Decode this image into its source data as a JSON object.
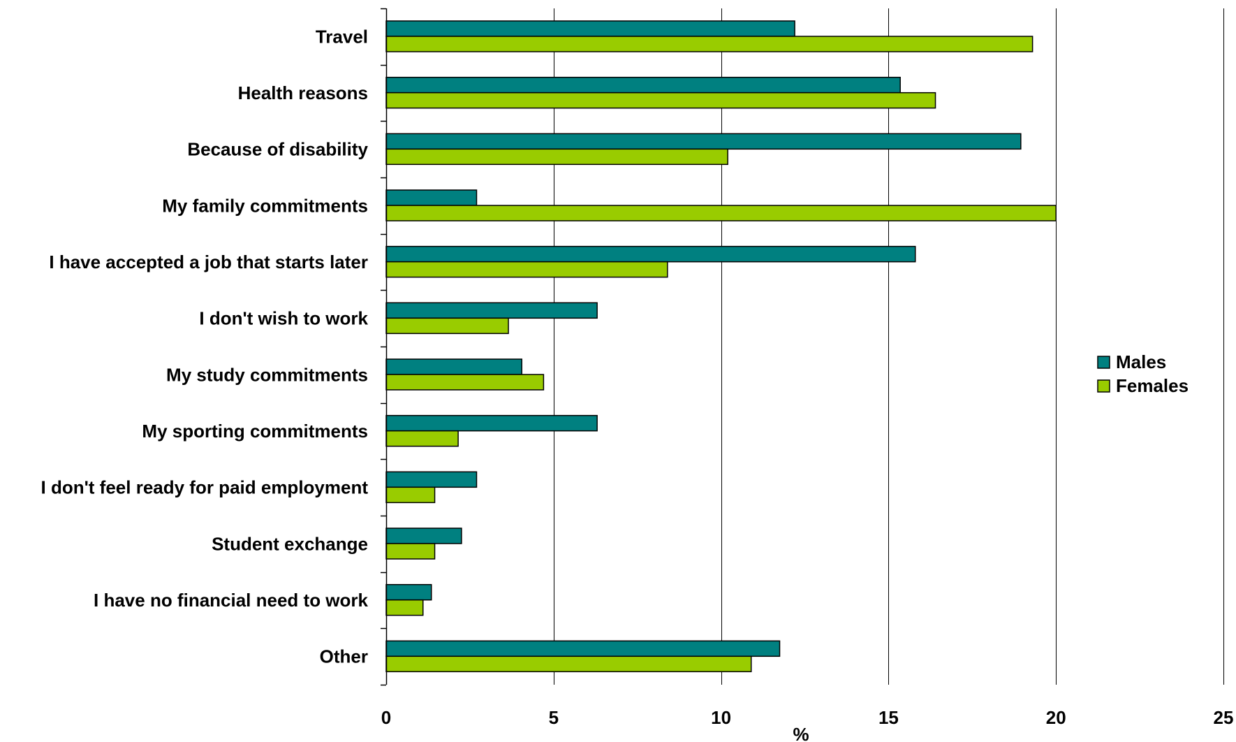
{
  "chart_data": {
    "type": "bar",
    "orientation": "horizontal",
    "title": "",
    "xlabel": "%",
    "ylabel": "",
    "xlim": [
      0,
      25
    ],
    "xticks": [
      0,
      5,
      10,
      15,
      20,
      25
    ],
    "grid": "vertical",
    "legend_position": "right",
    "categories": [
      "Travel",
      "Health reasons",
      "Because of disability",
      "My family commitments",
      "I have accepted a job that starts later",
      "I don't wish to work",
      "My study commitments",
      "My sporting commitments",
      "I don't feel ready for paid employment",
      "Student exchange",
      "I have no financial need to work",
      "Other"
    ],
    "series": [
      {
        "name": "Males",
        "color": "#008080",
        "values": [
          12.2,
          15.35,
          18.95,
          2.7,
          15.8,
          6.3,
          4.05,
          6.3,
          2.7,
          2.25,
          1.35,
          11.75
        ]
      },
      {
        "name": "Females",
        "color": "#99CC00",
        "values": [
          19.3,
          16.4,
          10.2,
          20.0,
          8.4,
          3.65,
          4.7,
          2.15,
          1.45,
          1.45,
          1.1,
          10.9
        ]
      }
    ]
  }
}
